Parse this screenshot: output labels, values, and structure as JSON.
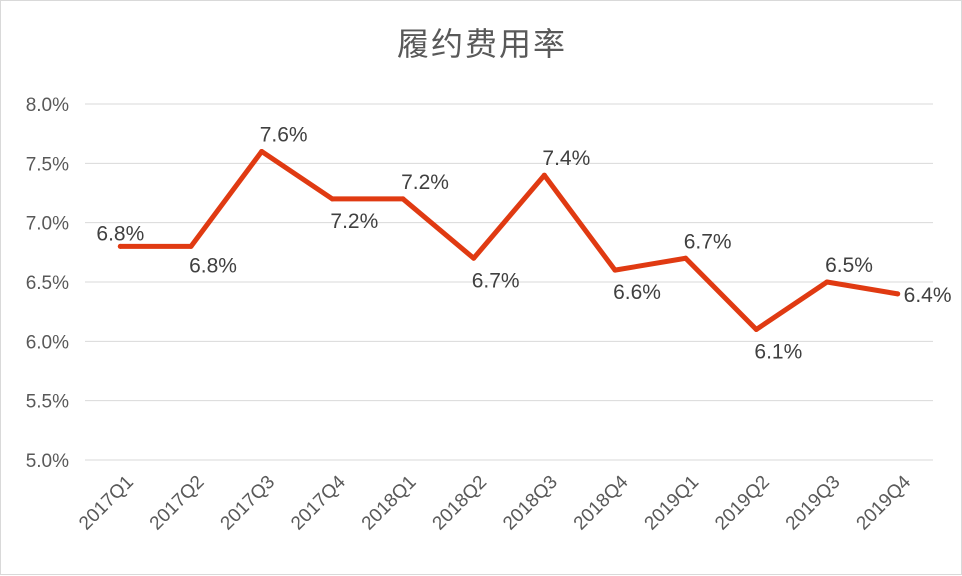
{
  "chart_data": {
    "type": "line",
    "title": "履约费用率",
    "xlabel": "",
    "ylabel": "",
    "categories": [
      "2017Q1",
      "2017Q2",
      "2017Q3",
      "2017Q4",
      "2018Q1",
      "2018Q2",
      "2018Q3",
      "2018Q4",
      "2019Q1",
      "2019Q2",
      "2019Q3",
      "2019Q4"
    ],
    "series": [
      {
        "values": [
          6.8,
          6.8,
          7.6,
          7.2,
          7.2,
          6.7,
          7.4,
          6.6,
          6.7,
          6.1,
          6.5,
          6.4
        ],
        "data_labels": [
          "6.8%",
          "6.8%",
          "7.6%",
          "7.2%",
          "7.2%",
          "6.7%",
          "7.4%",
          "6.6%",
          "6.7%",
          "6.1%",
          "6.5%",
          "6.4%"
        ],
        "color": "#e03a12"
      }
    ],
    "ylim": [
      5.0,
      8.0
    ],
    "yticks": [
      5.0,
      5.5,
      6.0,
      6.5,
      7.0,
      7.5,
      8.0
    ],
    "ytick_labels": [
      "5.0%",
      "5.5%",
      "6.0%",
      "6.5%",
      "7.0%",
      "7.5%",
      "8.0%"
    ],
    "grid": true,
    "legend": "none"
  },
  "colors": {
    "line": "#e03a12",
    "grid": "#d9d9d9",
    "text": "#595959"
  }
}
